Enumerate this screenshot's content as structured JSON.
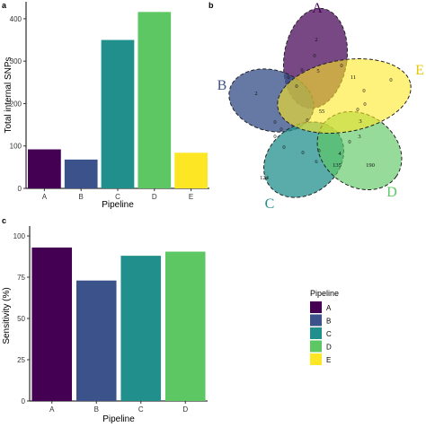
{
  "chart_data": [
    {
      "panel": "a",
      "type": "bar",
      "xlabel": "Pipeline",
      "ylabel": "Total internal SNPs",
      "categories": [
        "A",
        "B",
        "C",
        "D",
        "E"
      ],
      "values": [
        92,
        68,
        350,
        416,
        84
      ],
      "colors": [
        "#440154",
        "#3b528b",
        "#21908c",
        "#5dc863",
        "#fde725"
      ],
      "yticks": [
        0,
        100,
        200,
        300,
        400
      ],
      "ylim": [
        0,
        440
      ],
      "grid": false
    },
    {
      "panel": "b",
      "type": "venn",
      "sets": [
        {
          "name": "A",
          "color": "#440154"
        },
        {
          "name": "B",
          "color": "#3b528b"
        },
        {
          "name": "C",
          "color": "#21908c"
        },
        {
          "name": "D",
          "color": "#5dc863"
        },
        {
          "name": "E",
          "color": "#fde725"
        }
      ],
      "region_values": [
        "2",
        "2",
        "0",
        "124",
        "190",
        "55",
        "5",
        "11",
        "0",
        "0",
        "0",
        "0",
        "0",
        "0",
        "0",
        "0",
        "0",
        "0",
        "0",
        "0",
        "3",
        "3",
        "0",
        "4",
        "0",
        "0",
        "6",
        "135",
        "0"
      ]
    },
    {
      "panel": "c",
      "type": "bar",
      "xlabel": "Pipeline",
      "ylabel": "Sensitivity (%)",
      "categories": [
        "A",
        "B",
        "C",
        "D"
      ],
      "values": [
        93,
        73,
        88,
        90.5
      ],
      "colors": [
        "#440154",
        "#3b528b",
        "#21908c",
        "#5dc863"
      ],
      "yticks": [
        0,
        25,
        50,
        75,
        100
      ],
      "ylim": [
        0,
        106
      ],
      "grid": false,
      "legend": {
        "title": "Pipeline",
        "position": "right",
        "items": [
          "A",
          "B",
          "C",
          "D",
          "E"
        ],
        "colors": [
          "#440154",
          "#3b528b",
          "#21908c",
          "#5dc863",
          "#fde725"
        ]
      }
    }
  ],
  "panel_labels": {
    "a": "a",
    "b": "b",
    "c": "c"
  }
}
